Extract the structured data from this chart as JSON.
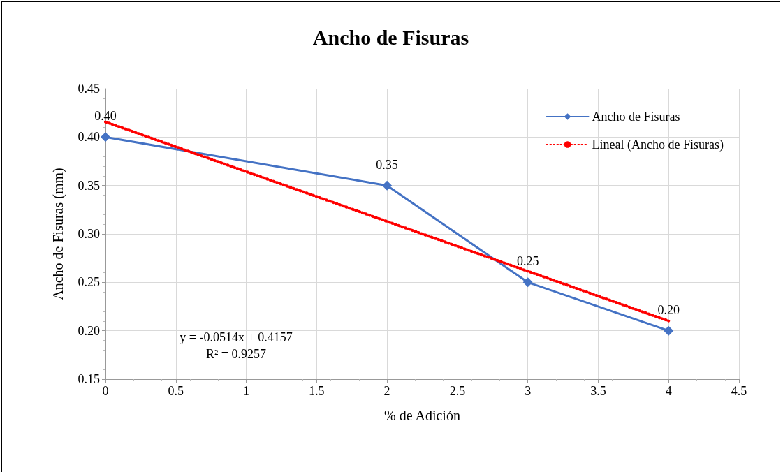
{
  "chart_data": {
    "type": "line",
    "title": "Ancho de Fisuras",
    "xlabel": "% de Adición",
    "ylabel": "Ancho de Fisuras (mm)",
    "series": [
      {
        "name": "Ancho de Fisuras",
        "color": "#4472c4",
        "x": [
          0,
          2,
          3,
          4
        ],
        "values": [
          0.4,
          0.35,
          0.25,
          0.2
        ],
        "value_labels": [
          "0.40",
          "0.35",
          "0.25",
          "0.20"
        ],
        "marker": "diamond",
        "line_style": "solid"
      },
      {
        "name": "Lineal (Ancho de Fisuras)",
        "color": "#ff0000",
        "x": [
          0,
          4
        ],
        "values": [
          0.4157,
          0.2101
        ],
        "marker": "none",
        "line_style": "dotted"
      }
    ],
    "xlim": [
      0,
      4.5
    ],
    "xticks": [
      0,
      0.5,
      1,
      1.5,
      2,
      2.5,
      3,
      3.5,
      4,
      4.5
    ],
    "ylim": [
      0.15,
      0.45
    ],
    "yticks": [
      {
        "value": 0.15,
        "label": "0.15"
      },
      {
        "value": 0.2,
        "label": "0.20"
      },
      {
        "value": 0.25,
        "label": "0.25"
      },
      {
        "value": 0.3,
        "label": "0.30"
      },
      {
        "value": 0.35,
        "label": "0.35"
      },
      {
        "value": 0.4,
        "label": "0.40"
      },
      {
        "value": 0.45,
        "label": "0.45"
      }
    ],
    "annotations": [
      "y = -0.0514x + 0.4157\nR² = 0.9257"
    ],
    "grid": true,
    "legend": "top right"
  }
}
